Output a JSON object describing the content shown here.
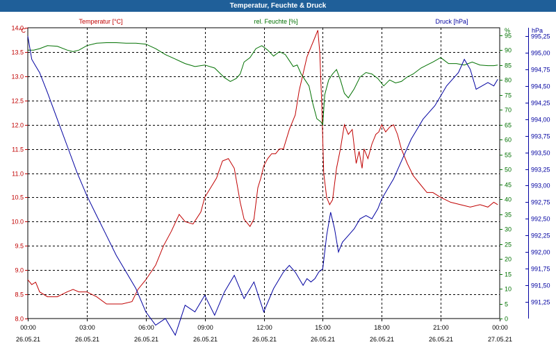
{
  "window_title": "Temperatur, Feuchte & Druck",
  "colors": {
    "temperature": "#c00000",
    "humidity": "#007000",
    "pressure": "#0000a0",
    "title_bar": "#1f5f99"
  },
  "chart_data": {
    "type": "line",
    "title": "Temperatur, Feuchte & Druck",
    "x_ticks": [
      {
        "time": "00:00",
        "date": "26.05.21",
        "h": 0
      },
      {
        "time": "03:00",
        "date": "26.05.21",
        "h": 3
      },
      {
        "time": "06:00",
        "date": "26.05.21",
        "h": 6
      },
      {
        "time": "09:00",
        "date": "26.05.21",
        "h": 9
      },
      {
        "time": "12:00",
        "date": "26.05.21",
        "h": 12
      },
      {
        "time": "15:00",
        "date": "26.05.21",
        "h": 15
      },
      {
        "time": "18:00",
        "date": "26.05.21",
        "h": 18
      },
      {
        "time": "21:00",
        "date": "26.05.21",
        "h": 21
      },
      {
        "time": "00:00",
        "date": "27.05.21",
        "h": 24
      }
    ],
    "x_range_hours": [
      0,
      24
    ],
    "grid": true,
    "axes": {
      "temperature": {
        "label": "Temperatur [°C]",
        "unit": "°C",
        "side": "left",
        "ylim": [
          8.0,
          14.0
        ],
        "ticks": [
          "8.0",
          "8.5",
          "9.0",
          "9.5",
          "10.0",
          "10.5",
          "11.0",
          "11.5",
          "12.0",
          "12.5",
          "13.0",
          "13.5",
          "14.0"
        ]
      },
      "humidity": {
        "label": "rel. Feuchte [%]",
        "unit": "%",
        "side": "right",
        "ylim": [
          0,
          97.5
        ],
        "ticks": [
          "0",
          "5",
          "10",
          "15",
          "20",
          "25",
          "30",
          "35",
          "40",
          "45",
          "50",
          "55",
          "60",
          "65",
          "70",
          "75",
          "80",
          "85",
          "90",
          "95"
        ]
      },
      "pressure": {
        "label": "Druck [hPa]",
        "unit": "hPa",
        "side": "right",
        "ylim": [
          991.0,
          995.375
        ],
        "ticks": [
          "991,25",
          "991,50",
          "991,75",
          "992,00",
          "992,25",
          "992,50",
          "992,75",
          "993,00",
          "993,25",
          "993,50",
          "993,75",
          "994,00",
          "994,25",
          "994,50",
          "994,75",
          "995,00",
          "995,25"
        ]
      }
    },
    "series": [
      {
        "name": "Temperatur [°C]",
        "axis": "temperature",
        "x": [
          0,
          0.2,
          0.4,
          0.6,
          1.0,
          1.5,
          2.0,
          2.3,
          2.6,
          3.0,
          3.5,
          4.0,
          4.3,
          4.8,
          5.3,
          5.6,
          6.0,
          6.5,
          6.9,
          7.3,
          7.7,
          8.0,
          8.4,
          8.8,
          9.0,
          9.3,
          9.6,
          9.9,
          10.2,
          10.5,
          10.8,
          11.0,
          11.3,
          11.5,
          11.7,
          11.85,
          12.0,
          12.2,
          12.4,
          12.6,
          12.8,
          13.0,
          13.3,
          13.6,
          13.8,
          14.0,
          14.2,
          14.4,
          14.6,
          14.75,
          14.85,
          14.95,
          15.05,
          15.2,
          15.35,
          15.5,
          15.7,
          15.9,
          16.1,
          16.3,
          16.5,
          16.7,
          16.85,
          17.0,
          17.1,
          17.3,
          17.5,
          17.7,
          17.85,
          18.0,
          18.2,
          18.4,
          18.6,
          18.8,
          19.0,
          19.3,
          19.6,
          20.0,
          20.3,
          20.6,
          21.0,
          21.5,
          22.0,
          22.5,
          23.0,
          23.4,
          23.7,
          23.9
        ],
        "values": [
          8.8,
          8.7,
          8.75,
          8.55,
          8.45,
          8.45,
          8.55,
          8.6,
          8.55,
          8.55,
          8.45,
          8.3,
          8.3,
          8.3,
          8.35,
          8.6,
          8.8,
          9.1,
          9.5,
          9.8,
          10.15,
          10.0,
          9.95,
          10.2,
          10.5,
          10.7,
          10.9,
          11.25,
          11.3,
          11.1,
          10.4,
          10.05,
          9.9,
          10.05,
          10.7,
          10.9,
          11.15,
          11.3,
          11.4,
          11.4,
          11.5,
          11.5,
          11.9,
          12.2,
          12.7,
          13.05,
          13.4,
          13.6,
          13.8,
          13.95,
          13.5,
          12.4,
          11.0,
          10.5,
          10.35,
          10.45,
          11.1,
          11.5,
          12.0,
          11.8,
          11.9,
          11.2,
          11.45,
          11.1,
          11.5,
          11.3,
          11.6,
          11.8,
          11.85,
          12.0,
          11.85,
          11.95,
          12.0,
          11.8,
          11.5,
          11.2,
          10.95,
          10.75,
          10.6,
          10.6,
          10.5,
          10.4,
          10.35,
          10.3,
          10.35,
          10.3,
          10.4,
          10.35
        ]
      },
      {
        "name": "rel. Feuchte [%]",
        "axis": "humidity",
        "x": [
          0,
          0.3,
          0.6,
          1.0,
          1.5,
          2.0,
          2.3,
          2.6,
          3.0,
          3.5,
          4.0,
          4.5,
          5.0,
          5.5,
          6.0,
          6.5,
          7.0,
          7.5,
          8.0,
          8.5,
          9.0,
          9.5,
          10.0,
          10.3,
          10.6,
          10.8,
          11.0,
          11.3,
          11.6,
          11.9,
          12.2,
          12.5,
          12.8,
          13.1,
          13.3,
          13.5,
          13.7,
          13.9,
          14.1,
          14.3,
          14.5,
          14.7,
          14.9,
          15.0,
          15.1,
          15.3,
          15.5,
          15.7,
          15.9,
          16.1,
          16.3,
          16.6,
          16.9,
          17.2,
          17.5,
          17.8,
          18.1,
          18.4,
          18.7,
          19.0,
          19.3,
          19.6,
          20.0,
          20.3,
          20.6,
          21.0,
          21.4,
          21.8,
          22.2,
          22.6,
          23.0,
          23.4,
          23.7,
          23.9
        ],
        "values": [
          90,
          90,
          90.5,
          91.5,
          91.3,
          90,
          89.5,
          90,
          91.5,
          92.3,
          92.5,
          92.5,
          92.3,
          92.3,
          92,
          90.5,
          88.5,
          87,
          85.5,
          84.5,
          85,
          84,
          80.8,
          79.5,
          80.5,
          82,
          86,
          87.5,
          90.5,
          91.5,
          90,
          88,
          89.5,
          88.5,
          86.5,
          84.5,
          85,
          82,
          80,
          78,
          72,
          67,
          66,
          65,
          75,
          80,
          82,
          83.5,
          80,
          75.5,
          74,
          77,
          81,
          82.5,
          82,
          80.5,
          78,
          80,
          79,
          79.5,
          81,
          82,
          84,
          85,
          86,
          87.5,
          85.5,
          85.5,
          85,
          86,
          85,
          84.8,
          84.8,
          85
        ]
      },
      {
        "name": "Druck [hPa]",
        "axis": "pressure",
        "x": [
          0,
          0.2,
          0.4,
          0.6,
          1.0,
          1.5,
          2.0,
          2.5,
          3.0,
          3.5,
          4.0,
          4.5,
          5.0,
          5.5,
          6.0,
          6.5,
          7.0,
          7.5,
          8.0,
          8.5,
          9.0,
          9.5,
          10.0,
          10.5,
          11.0,
          11.5,
          12.0,
          12.5,
          13.0,
          13.3,
          13.6,
          13.8,
          14.0,
          14.2,
          14.4,
          14.6,
          14.8,
          15.0,
          15.2,
          15.4,
          15.6,
          15.8,
          16.0,
          16.3,
          16.6,
          16.9,
          17.2,
          17.5,
          17.8,
          18.0,
          18.3,
          18.6,
          18.9,
          19.2,
          19.5,
          19.8,
          20.1,
          20.4,
          20.7,
          21.0,
          21.3,
          21.6,
          21.9,
          22.2,
          22.5,
          22.8,
          23.1,
          23.4,
          23.7,
          23.9
        ],
        "values": [
          995.25,
          994.9,
          994.8,
          994.7,
          994.4,
          994.0,
          993.6,
          993.2,
          992.85,
          992.55,
          992.25,
          991.95,
          991.7,
          991.45,
          991.1,
          990.9,
          991.0,
          990.75,
          991.2,
          991.1,
          991.35,
          991.05,
          991.4,
          991.65,
          991.3,
          991.55,
          991.1,
          991.45,
          991.7,
          991.8,
          991.7,
          991.6,
          991.5,
          991.6,
          991.55,
          991.6,
          991.7,
          991.75,
          992.25,
          992.6,
          992.35,
          992.0,
          992.15,
          992.25,
          992.35,
          992.5,
          992.55,
          992.5,
          992.65,
          992.8,
          992.95,
          993.1,
          993.3,
          993.5,
          993.7,
          993.85,
          994.0,
          994.1,
          994.2,
          994.35,
          994.5,
          994.6,
          994.7,
          994.9,
          994.75,
          994.45,
          994.5,
          994.55,
          994.5,
          994.6
        ]
      }
    ]
  }
}
